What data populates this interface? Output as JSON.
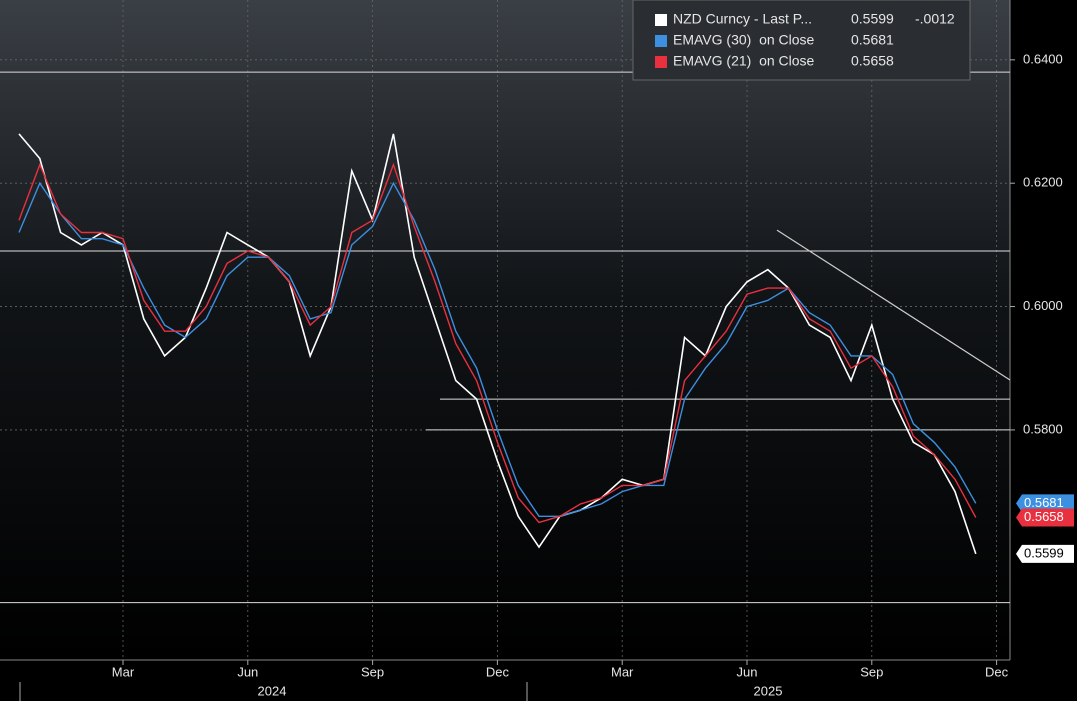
{
  "chart_data": {
    "type": "line",
    "categories": [
      null,
      null,
      null,
      null,
      null,
      "Mar",
      null,
      null,
      null,
      null,
      null,
      "Jun",
      null,
      null,
      null,
      null,
      null,
      "Sep",
      null,
      null,
      null,
      null,
      null,
      "Dec",
      null,
      null,
      null,
      null,
      null,
      "Mar",
      null,
      null,
      null,
      null,
      null,
      "Jun",
      null,
      null,
      null,
      null,
      null,
      "Sep",
      null,
      null,
      null,
      null,
      null,
      "Dec"
    ],
    "year_labels": [
      "2024",
      "2025"
    ],
    "series": [
      {
        "name": "NZD Curncy - Last P...",
        "color": "#ffffff",
        "change": {
          "value": -0.0012,
          "label": "-.0012"
        },
        "values": [
          0.628,
          0.624,
          0.612,
          0.61,
          0.612,
          0.61,
          0.598,
          0.592,
          0.595,
          0.603,
          0.612,
          0.61,
          0.608,
          0.604,
          0.592,
          0.6,
          0.622,
          0.614,
          0.628,
          0.608,
          0.598,
          0.588,
          0.585,
          0.575,
          0.566,
          0.561,
          0.566,
          0.567,
          0.569,
          0.572,
          0.571,
          0.572,
          0.595,
          0.592,
          0.6,
          0.604,
          0.606,
          0.603,
          0.597,
          0.595,
          0.588,
          0.597,
          0.585,
          0.578,
          0.576,
          0.57,
          0.5599,
          null
        ]
      },
      {
        "name": "EMAVG (30)  on Close",
        "color": "#3d8fe0",
        "values": [
          0.612,
          0.62,
          0.615,
          0.611,
          0.611,
          0.61,
          0.603,
          0.597,
          0.595,
          0.598,
          0.605,
          0.608,
          0.608,
          0.605,
          0.598,
          0.599,
          0.61,
          0.613,
          0.62,
          0.614,
          0.606,
          0.596,
          0.59,
          0.58,
          0.571,
          0.566,
          0.566,
          0.567,
          0.568,
          0.57,
          0.571,
          0.571,
          0.585,
          0.59,
          0.594,
          0.6,
          0.601,
          0.603,
          0.599,
          0.597,
          0.592,
          0.592,
          0.589,
          0.581,
          0.578,
          0.574,
          0.5681,
          null
        ]
      },
      {
        "name": "EMAVG (21)  on Close",
        "color": "#e8303f",
        "values": [
          0.614,
          0.623,
          0.615,
          0.612,
          0.612,
          0.611,
          0.601,
          0.596,
          0.596,
          0.6,
          0.607,
          0.609,
          0.608,
          0.604,
          0.597,
          0.6,
          0.612,
          0.614,
          0.623,
          0.613,
          0.604,
          0.594,
          0.588,
          0.578,
          0.569,
          0.565,
          0.566,
          0.568,
          0.569,
          0.571,
          0.571,
          0.572,
          0.588,
          0.592,
          0.596,
          0.602,
          0.603,
          0.603,
          0.598,
          0.596,
          0.59,
          0.592,
          0.587,
          0.579,
          0.576,
          0.572,
          0.5658,
          null
        ]
      }
    ],
    "hlines": [
      0.638,
      0.609,
      0.585,
      0.58,
      0.552
    ],
    "trendline": [
      0.6124,
      0.5881
    ],
    "ylim": [
      0.5427,
      0.6497
    ],
    "yticks": [
      {
        "value": 0.58,
        "label": "0.5800"
      },
      {
        "value": 0.6,
        "label": "0.6000"
      },
      {
        "value": 0.62,
        "label": "0.6200"
      },
      {
        "value": 0.64,
        "label": "0.6400"
      }
    ],
    "grid": true
  }
}
